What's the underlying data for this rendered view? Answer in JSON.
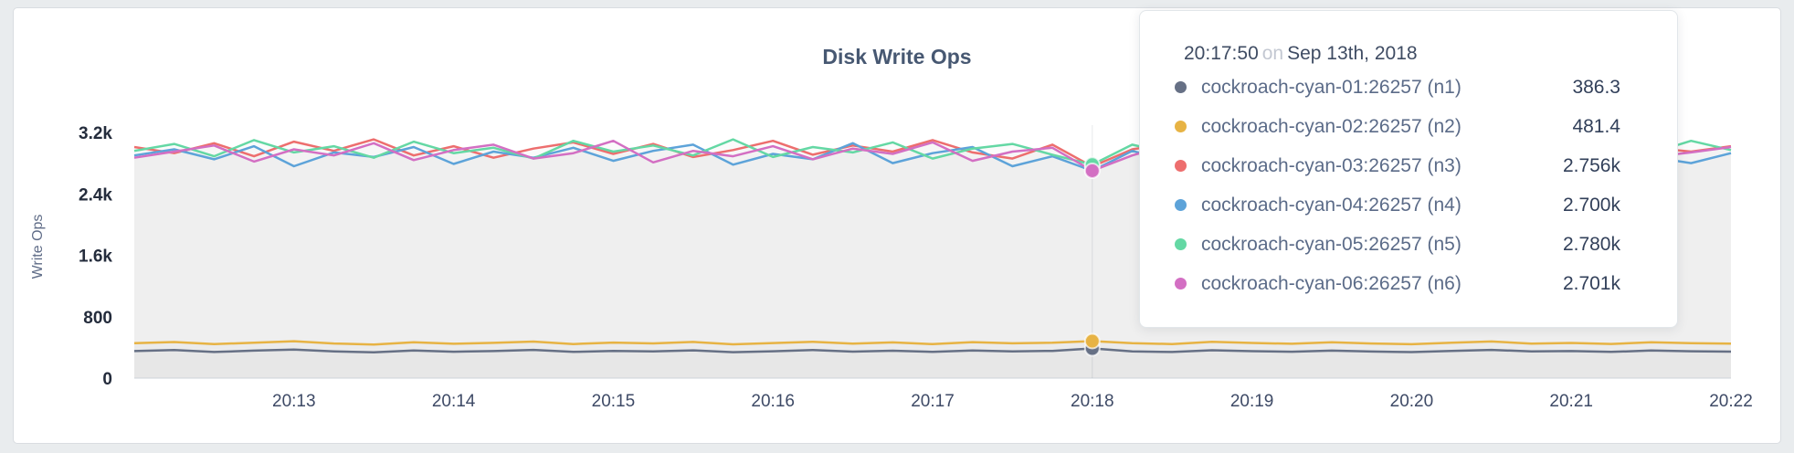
{
  "window": {
    "background": "#e9ecee",
    "card_background": "#ffffff",
    "card_border": "#d9dde1"
  },
  "chart": {
    "title": "Disk Write Ops",
    "y_axis_label": "Write Ops"
  },
  "tooltip": {
    "time": "20:17:50",
    "separator": "on",
    "date": "Sep 13th, 2018",
    "rows": [
      {
        "name": "cockroach-cyan-01:26257 (n1)",
        "value": "386.3",
        "color": "#667085"
      },
      {
        "name": "cockroach-cyan-02:26257 (n2)",
        "value": "481.4",
        "color": "#e7b344"
      },
      {
        "name": "cockroach-cyan-03:26257 (n3)",
        "value": "2.756k",
        "color": "#ed6e6e"
      },
      {
        "name": "cockroach-cyan-04:26257 (n4)",
        "value": "2.700k",
        "color": "#5da3d9"
      },
      {
        "name": "cockroach-cyan-05:26257 (n5)",
        "value": "2.780k",
        "color": "#64d8a4"
      },
      {
        "name": "cockroach-cyan-06:26257 (n6)",
        "value": "2.701k",
        "color": "#d36fc3"
      }
    ]
  },
  "chart_data": {
    "type": "area",
    "title": "Disk Write Ops",
    "xlabel": "",
    "ylabel": "Write Ops",
    "ylim": [
      0,
      3200
    ],
    "grid": false,
    "legend_position": "tooltip",
    "y_tick_values": [
      0,
      800,
      1600,
      2400,
      3200
    ],
    "y_tick_labels": [
      "0",
      "800",
      "1.6k",
      "2.4k",
      "3.2k"
    ],
    "x_start": "20:12:00",
    "x_end": "20:22:00",
    "x_step_seconds": 15,
    "x_tick_labels": [
      "20:13",
      "20:14",
      "20:15",
      "20:16",
      "20:17",
      "20:18",
      "20:19",
      "20:20",
      "20:21",
      "20:22"
    ],
    "area_fill": "rgba(113,120,134,0.03)",
    "hover": {
      "time": "20:17:50",
      "date": "Sep 13th, 2018",
      "index": 24
    },
    "series": [
      {
        "name": "cockroach-cyan-01:26257 (n1)",
        "color": "#667085",
        "hover_value": 386.3,
        "values": [
          352,
          365,
          340,
          358,
          371,
          349,
          336,
          360,
          344,
          352,
          368,
          341,
          355,
          347,
          362,
          338,
          350,
          366,
          345,
          357,
          342,
          361,
          348,
          354,
          386.3,
          349,
          340,
          363,
          351,
          344,
          358,
          346,
          339,
          355,
          368,
          347,
          352,
          341,
          359,
          350,
          345
        ]
      },
      {
        "name": "cockroach-cyan-02:26257 (n2)",
        "color": "#e7b344",
        "hover_value": 481.4,
        "values": [
          455,
          470,
          443,
          462,
          480,
          451,
          438,
          468,
          447,
          459,
          476,
          444,
          463,
          452,
          471,
          440,
          457,
          474,
          448,
          465,
          442,
          469,
          453,
          460,
          481.4,
          455,
          444,
          472,
          458,
          447,
          466,
          451,
          441,
          462,
          477,
          450,
          458,
          445,
          468,
          456,
          449
        ]
      },
      {
        "name": "cockroach-cyan-03:26257 (n3)",
        "color": "#ed6e6e",
        "hover_value": 2756,
        "values": [
          3010,
          2930,
          3060,
          2890,
          3080,
          2960,
          3110,
          2900,
          3020,
          2870,
          2990,
          3070,
          2920,
          3050,
          2880,
          2970,
          3090,
          2910,
          3030,
          2950,
          3100,
          2940,
          2860,
          3040,
          2756,
          2980,
          3060,
          2900,
          3010,
          2940,
          3080,
          2920,
          2990,
          2870,
          3050,
          2960,
          3110,
          2930,
          3000,
          2950,
          3020
        ]
      },
      {
        "name": "cockroach-cyan-04:26257 (n4)",
        "color": "#5da3d9",
        "hover_value": 2700,
        "values": [
          2900,
          2980,
          2850,
          3020,
          2760,
          2940,
          2880,
          3010,
          2790,
          2950,
          2870,
          3000,
          2830,
          2960,
          3040,
          2780,
          2920,
          2850,
          3060,
          2800,
          2930,
          3010,
          2760,
          2890,
          2700,
          2960,
          2820,
          3030,
          2770,
          2950,
          2860,
          3000,
          2780,
          2940,
          2890,
          3020,
          2750,
          2970,
          2880,
          2800,
          2930
        ]
      },
      {
        "name": "cockroach-cyan-05:26257 (n5)",
        "color": "#64d8a4",
        "hover_value": 2780,
        "values": [
          2960,
          3050,
          2890,
          3100,
          2940,
          3020,
          2870,
          3080,
          2930,
          3000,
          2860,
          3090,
          2950,
          3030,
          2900,
          3110,
          2880,
          3010,
          2940,
          3070,
          2860,
          2990,
          3050,
          2910,
          2780,
          3040,
          2920,
          3080,
          2870,
          3000,
          2940,
          3100,
          2890,
          3020,
          2960,
          3070,
          2850,
          3010,
          2930,
          3090,
          2970
        ]
      },
      {
        "name": "cockroach-cyan-06:26257 (n6)",
        "color": "#d36fc3",
        "hover_value": 2701,
        "values": [
          2870,
          2950,
          3030,
          2820,
          2980,
          2900,
          3060,
          2840,
          2970,
          3040,
          2860,
          2930,
          3090,
          2810,
          2960,
          2890,
          3020,
          2850,
          2990,
          2920,
          3070,
          2830,
          2950,
          3000,
          2701,
          2900,
          3050,
          2840,
          2980,
          2910,
          3040,
          2860,
          2990,
          2920,
          3080,
          2850,
          2960,
          3030,
          2880,
          2940,
          3010
        ]
      }
    ]
  }
}
